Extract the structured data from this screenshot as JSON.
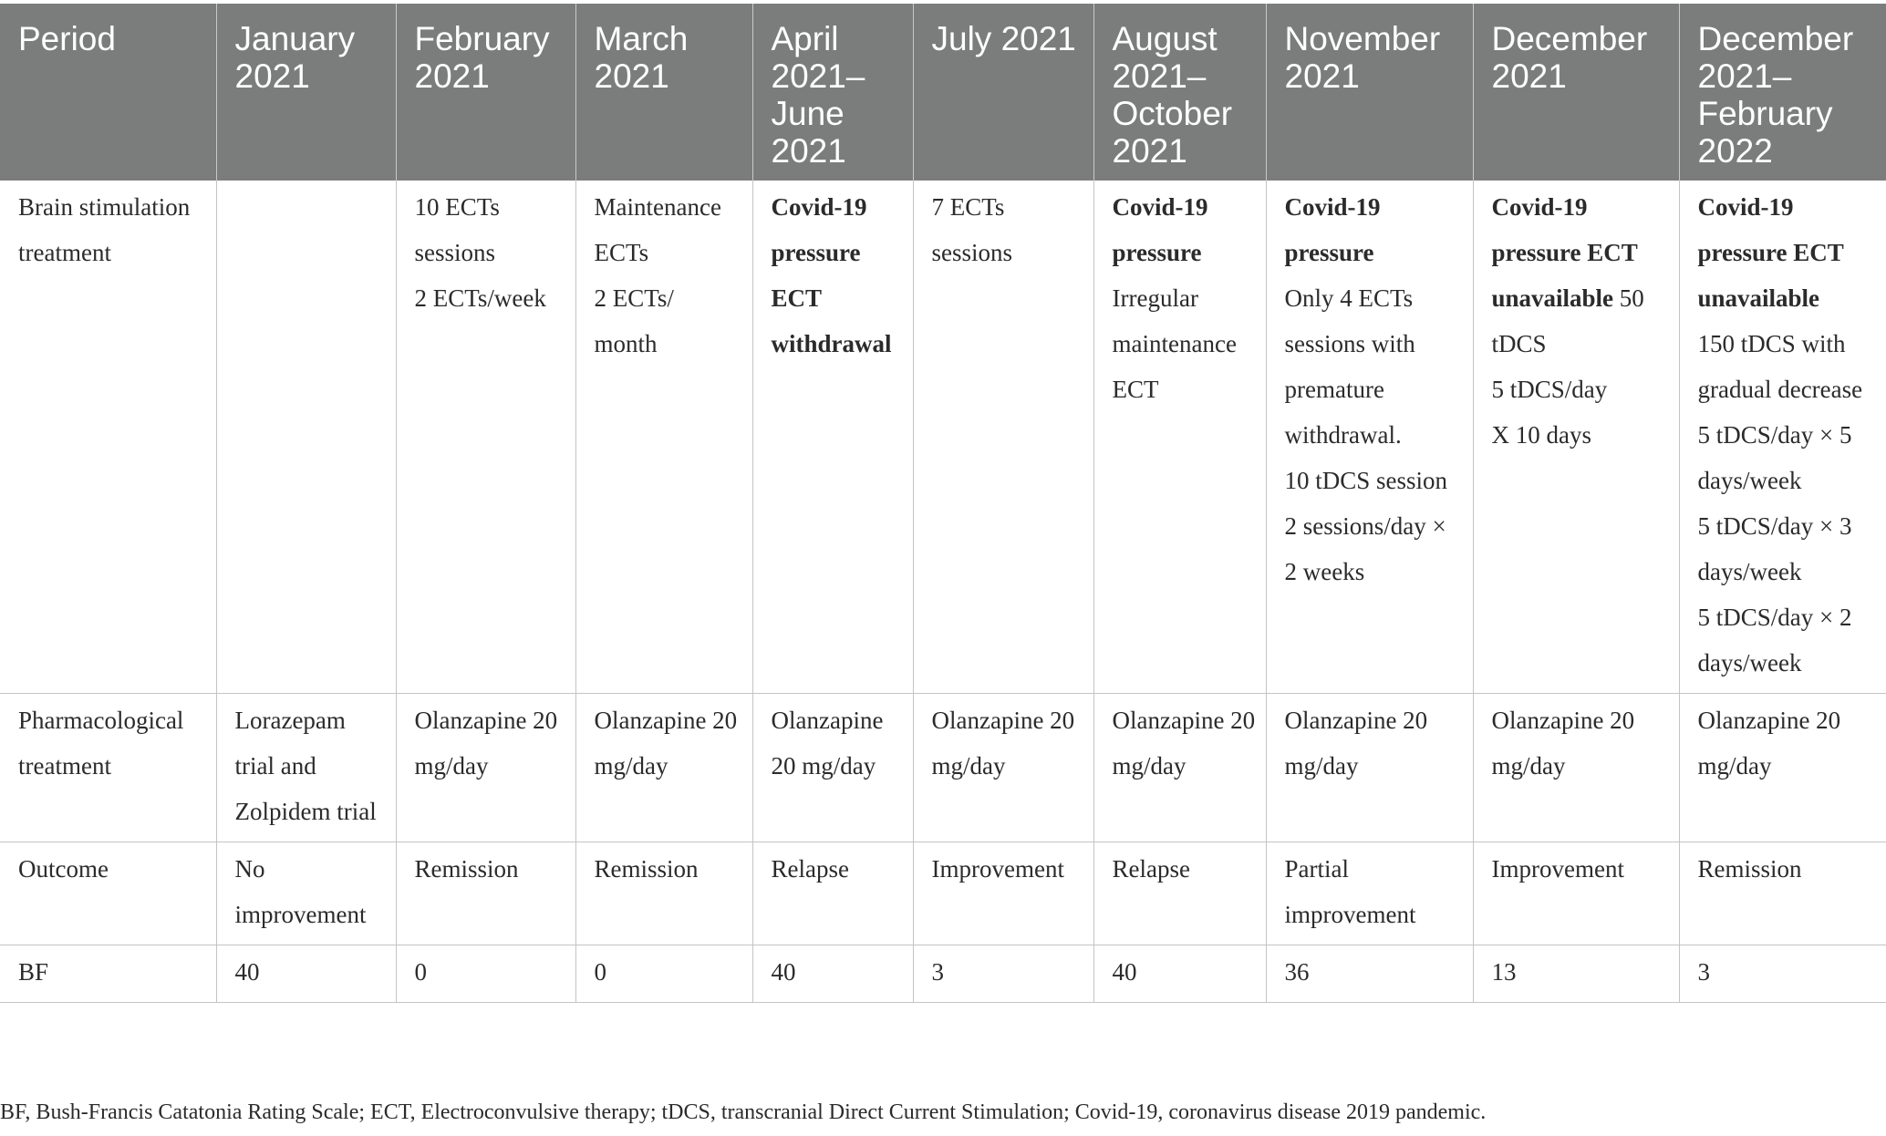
{
  "table": {
    "headers": [
      "Period",
      "January 2021",
      "February 2021",
      "March 2021",
      "April 2021–June 2021",
      "July 2021",
      "August 2021–October 2021",
      "November 2021",
      "December 2021",
      "December 2021–February 2022"
    ],
    "rows": {
      "brain": {
        "label": "Brain stimulation treatment",
        "cells": {
          "feb": [
            "10 ECTs sessions",
            "2 ECTs/week"
          ],
          "mar": [
            "Maintenance ECTs",
            "2 ECTs/ month"
          ],
          "apr_bold": "Covid-19 pressure ECT withdrawal",
          "jul": [
            "7 ECTs sessions"
          ],
          "aug_bold": "Covid-19 pressure",
          "aug": [
            "Irregular maintenance ECT"
          ],
          "nov_bold": "Covid-19 pressure",
          "nov": [
            "Only 4 ECTs sessions with premature withdrawal.",
            "10 tDCS session",
            "2 sessions/day × 2 weeks"
          ],
          "dec_bold": "Covid-19 pressure ECT unavailable",
          "dec_rest": " 50 tDCS",
          "dec": [
            "5 tDCS/day",
            "X 10 days"
          ],
          "decfeb_bold": "Covid-19 pressure ECT unavailable",
          "decfeb": [
            "150 tDCS with gradual decrease",
            "5 tDCS/day × 5 days/week",
            "5 tDCS/day × 3 days/week",
            "5 tDCS/day × 2 days/week"
          ]
        }
      },
      "pharma": {
        "label": "Pharmacological treatment",
        "cells": [
          "Lorazepam trial and Zolpidem trial",
          "Olanzapine 20 mg/day",
          "Olanzapine 20 mg/day",
          "Olanzapine 20 mg/day",
          "Olanzapine 20 mg/day",
          "Olanzapine 20 mg/day",
          "Olanzapine 20 mg/day",
          "Olanzapine 20 mg/day",
          "Olanzapine 20 mg/day"
        ]
      },
      "outcome": {
        "label": "Outcome",
        "cells": [
          "No improvement",
          "Remission",
          "Remission",
          "Relapse",
          "Improvement",
          "Relapse",
          "Partial improvement",
          "Improvement",
          "Remission"
        ]
      },
      "bf": {
        "label": "BF",
        "cells": [
          "40",
          "0",
          "0",
          "40",
          "3",
          "40",
          "36",
          "13",
          "3"
        ]
      }
    }
  },
  "footnote": "BF, Bush-Francis Catatonia Rating Scale; ECT, Electroconvulsive therapy; tDCS, transcranial Direct Current Stimulation; Covid-19, coronavirus disease 2019 pandemic.",
  "colors": {
    "header_bg": "#7b7d7c",
    "header_text": "#ffffff",
    "body_text": "#2b2b2b",
    "rule": "#c4c4c4"
  }
}
